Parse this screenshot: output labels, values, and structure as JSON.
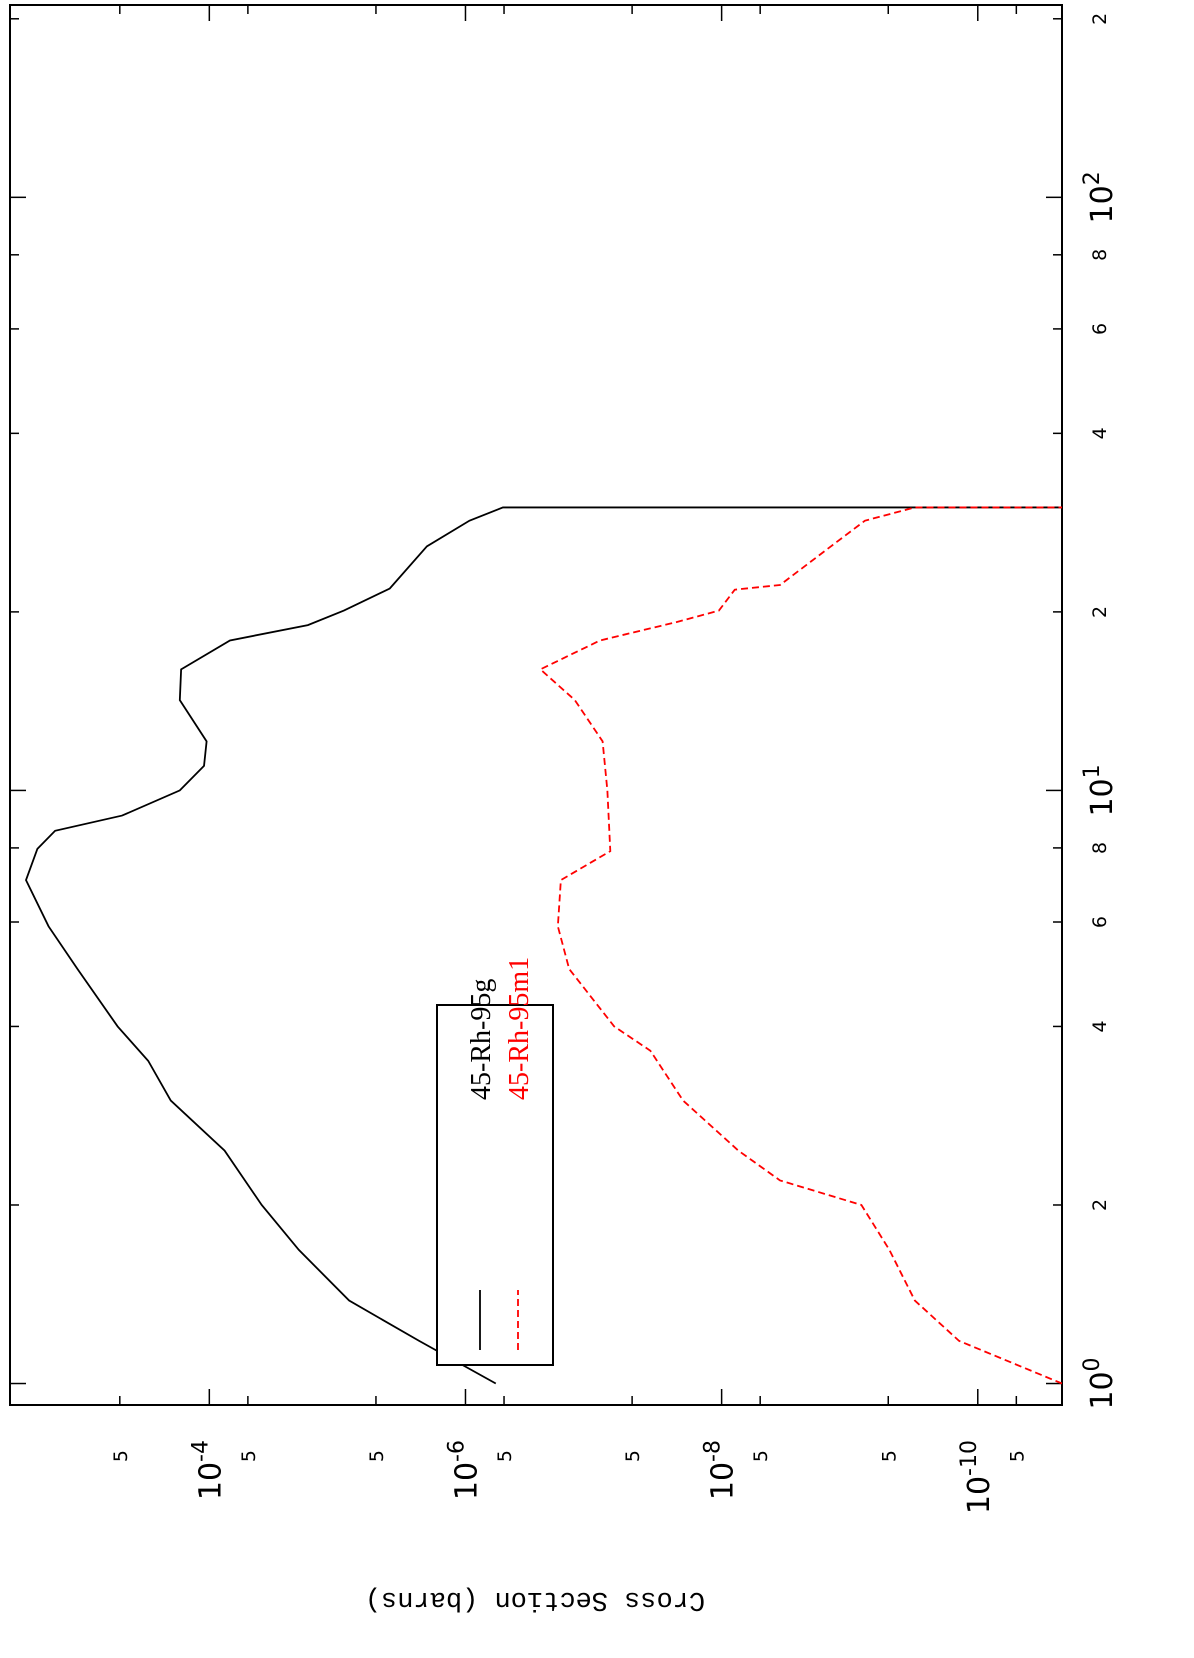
{
  "chart_data": {
    "type": "line",
    "y_label": "Cross Section (barns)",
    "xscale": "log",
    "yscale": "log",
    "xlim": [
      0.92,
      211
    ],
    "ylim": [
      2.2e-11,
      0.0036
    ],
    "xticks": [
      {
        "value": 1,
        "label": "10",
        "exponent": "0"
      },
      2,
      4,
      6,
      8,
      {
        "value": 10,
        "label": "10",
        "exponent": "1"
      },
      {
        "value": 20,
        "label": "2"
      },
      {
        "value": 40,
        "label": "4"
      },
      {
        "value": 60,
        "label": "6"
      },
      {
        "value": 80,
        "label": "8"
      },
      {
        "value": 100,
        "label": "10",
        "exponent": "2"
      },
      {
        "value": 200,
        "label": "2"
      }
    ],
    "yticks": [
      {
        "value": 5e-11,
        "label": "5"
      },
      {
        "value": 1e-10,
        "label": "10",
        "exponent": "-10"
      },
      {
        "value": 5e-10,
        "label": "5"
      },
      {
        "value": 5e-09,
        "label": "5"
      },
      {
        "value": 1e-08,
        "label": "10",
        "exponent": "-8"
      },
      {
        "value": 5e-08,
        "label": "5"
      },
      {
        "value": 5e-07,
        "label": "5"
      },
      {
        "value": 1e-06,
        "label": "10",
        "exponent": "-6"
      },
      {
        "value": 5e-06,
        "label": "5"
      },
      {
        "value": 5e-05,
        "label": "5"
      },
      {
        "value": 0.0001,
        "label": "10",
        "exponent": "-4"
      },
      {
        "value": 0.0005,
        "label": "5"
      }
    ],
    "legend": "center-left",
    "series": [
      {
        "name": "45-Rh-95g",
        "color": "#000000",
        "dash": "solid",
        "x": [
          1.0,
          1.18,
          1.38,
          1.68,
          2.0,
          2.47,
          3.0,
          3.5,
          4.0,
          5.0,
          5.9,
          7.06,
          7.97,
          8.55,
          9.07,
          10,
          11,
          12.1,
          14.2,
          16,
          17.9,
          19,
          20.1,
          21.9,
          25.8,
          28.5,
          30,
          30
        ],
        "values": [
          5.8e-07,
          2.3e-06,
          8.1e-06,
          2e-05,
          3.9e-05,
          7.6e-05,
          0.0002,
          0.0003,
          0.00052,
          0.00107,
          0.0018,
          0.0027,
          0.0022,
          0.0016,
          0.00048,
          0.00017,
          0.00011,
          0.000105,
          0.00017,
          0.000166,
          6.9e-05,
          1.7e-05,
          8.9e-06,
          3.9e-06,
          2e-06,
          9.3e-07,
          5.1e-07,
          1e-12
        ]
      },
      {
        "name": "45-Rh-95m1",
        "color": "#ff0000",
        "dash": "dashed",
        "x": [
          1.0,
          1.18,
          1.38,
          1.68,
          2.0,
          2.2,
          2.47,
          3.0,
          3.64,
          4.0,
          5.0,
          5.9,
          7.06,
          7.9,
          10,
          12.1,
          14.2,
          16,
          17.9,
          19.2,
          20.1,
          21.8,
          22.2,
          25.8,
          28.5,
          30,
          30
        ],
        "values": [
          2.2e-11,
          1.4e-10,
          3.1e-10,
          4.9e-10,
          8.1e-10,
          3.5e-09,
          7.4e-09,
          2e-08,
          3.6e-08,
          6.9e-08,
          1.55e-07,
          1.9e-07,
          1.8e-07,
          7.4e-08,
          7.8e-08,
          8.5e-08,
          1.4e-07,
          2.6e-07,
          8.9e-08,
          2.3e-08,
          1.05e-08,
          7.9e-09,
          3.5e-09,
          1.4e-09,
          7.6e-10,
          3.1e-10,
          1e-12
        ]
      }
    ]
  }
}
